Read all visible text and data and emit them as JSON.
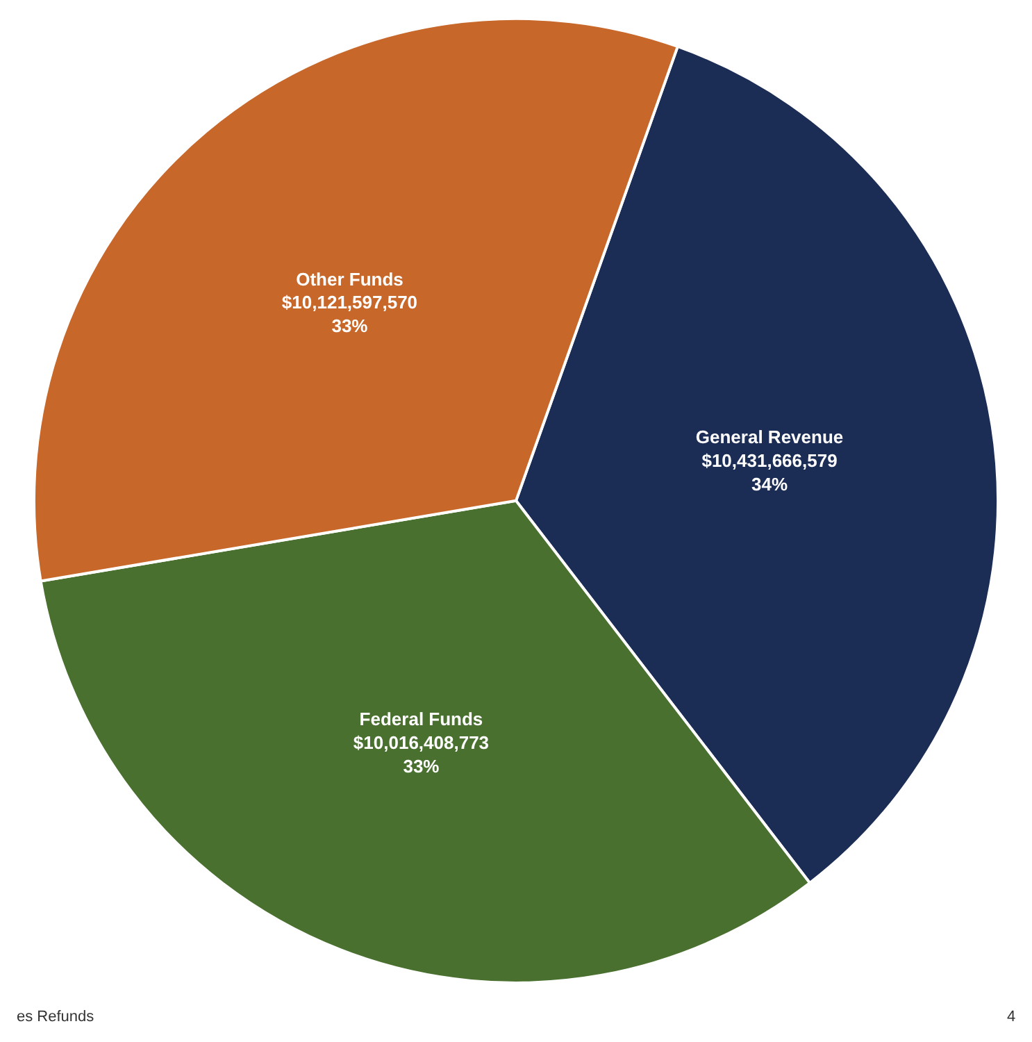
{
  "chart_data": {
    "type": "pie",
    "categories": [
      "General Revenue",
      "Federal Funds",
      "Other Funds"
    ],
    "values": [
      10431666579,
      10016408773,
      10121597570
    ],
    "value_labels": [
      "$10,431,666,579\n34%",
      "$10,016,408,773\n33%",
      "$10,121,597,570\n33%"
    ],
    "colors": [
      "#1b2d55",
      "#4a7030",
      "#c8672a"
    ],
    "annotations": [
      "es Refunds",
      "4"
    ],
    "legend": false
  }
}
